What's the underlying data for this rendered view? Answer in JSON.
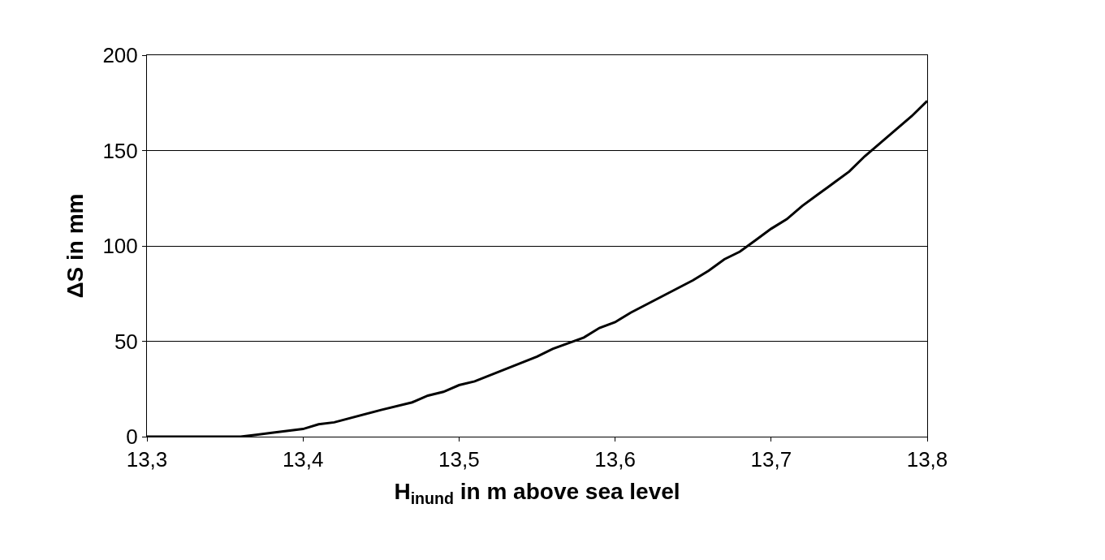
{
  "chart_data": {
    "type": "line",
    "xlabel": "H$_{inund}$ in m above sea level",
    "ylabel": "ΔS in mm",
    "x": [
      13.3,
      13.36,
      13.37,
      13.38,
      13.4,
      13.41,
      13.42,
      13.45,
      13.47,
      13.48,
      13.49,
      13.5,
      13.51,
      13.55,
      13.56,
      13.58,
      13.59,
      13.6,
      13.61,
      13.65,
      13.66,
      13.67,
      13.68,
      13.69,
      13.7,
      13.71,
      13.72,
      13.73,
      13.74,
      13.75,
      13.76,
      13.77,
      13.78,
      13.79,
      13.8
    ],
    "series": [
      {
        "color": "#000000",
        "values": [
          0,
          0,
          1,
          2,
          4,
          6.5,
          7.5,
          14,
          18,
          21.5,
          23.5,
          27,
          29,
          42,
          46,
          52,
          57,
          60,
          65,
          82,
          87,
          93,
          97,
          103,
          109,
          114,
          121,
          127,
          133,
          139,
          147,
          154,
          161,
          168,
          176
        ]
      }
    ],
    "xlim": [
      13.3,
      13.8
    ],
    "xticks": [
      {
        "value": 13.3,
        "label": "13,3"
      },
      {
        "value": 13.4,
        "label": "13,4"
      },
      {
        "value": 13.5,
        "label": "13,5"
      },
      {
        "value": 13.6,
        "label": "13,6"
      },
      {
        "value": 13.7,
        "label": "13,7"
      },
      {
        "value": 13.8,
        "label": "13,8"
      }
    ],
    "ylim": [
      0,
      200
    ],
    "yticks": [
      0,
      50,
      100,
      150,
      200
    ],
    "grid": "y",
    "marker": "none",
    "line_style": "solid"
  }
}
